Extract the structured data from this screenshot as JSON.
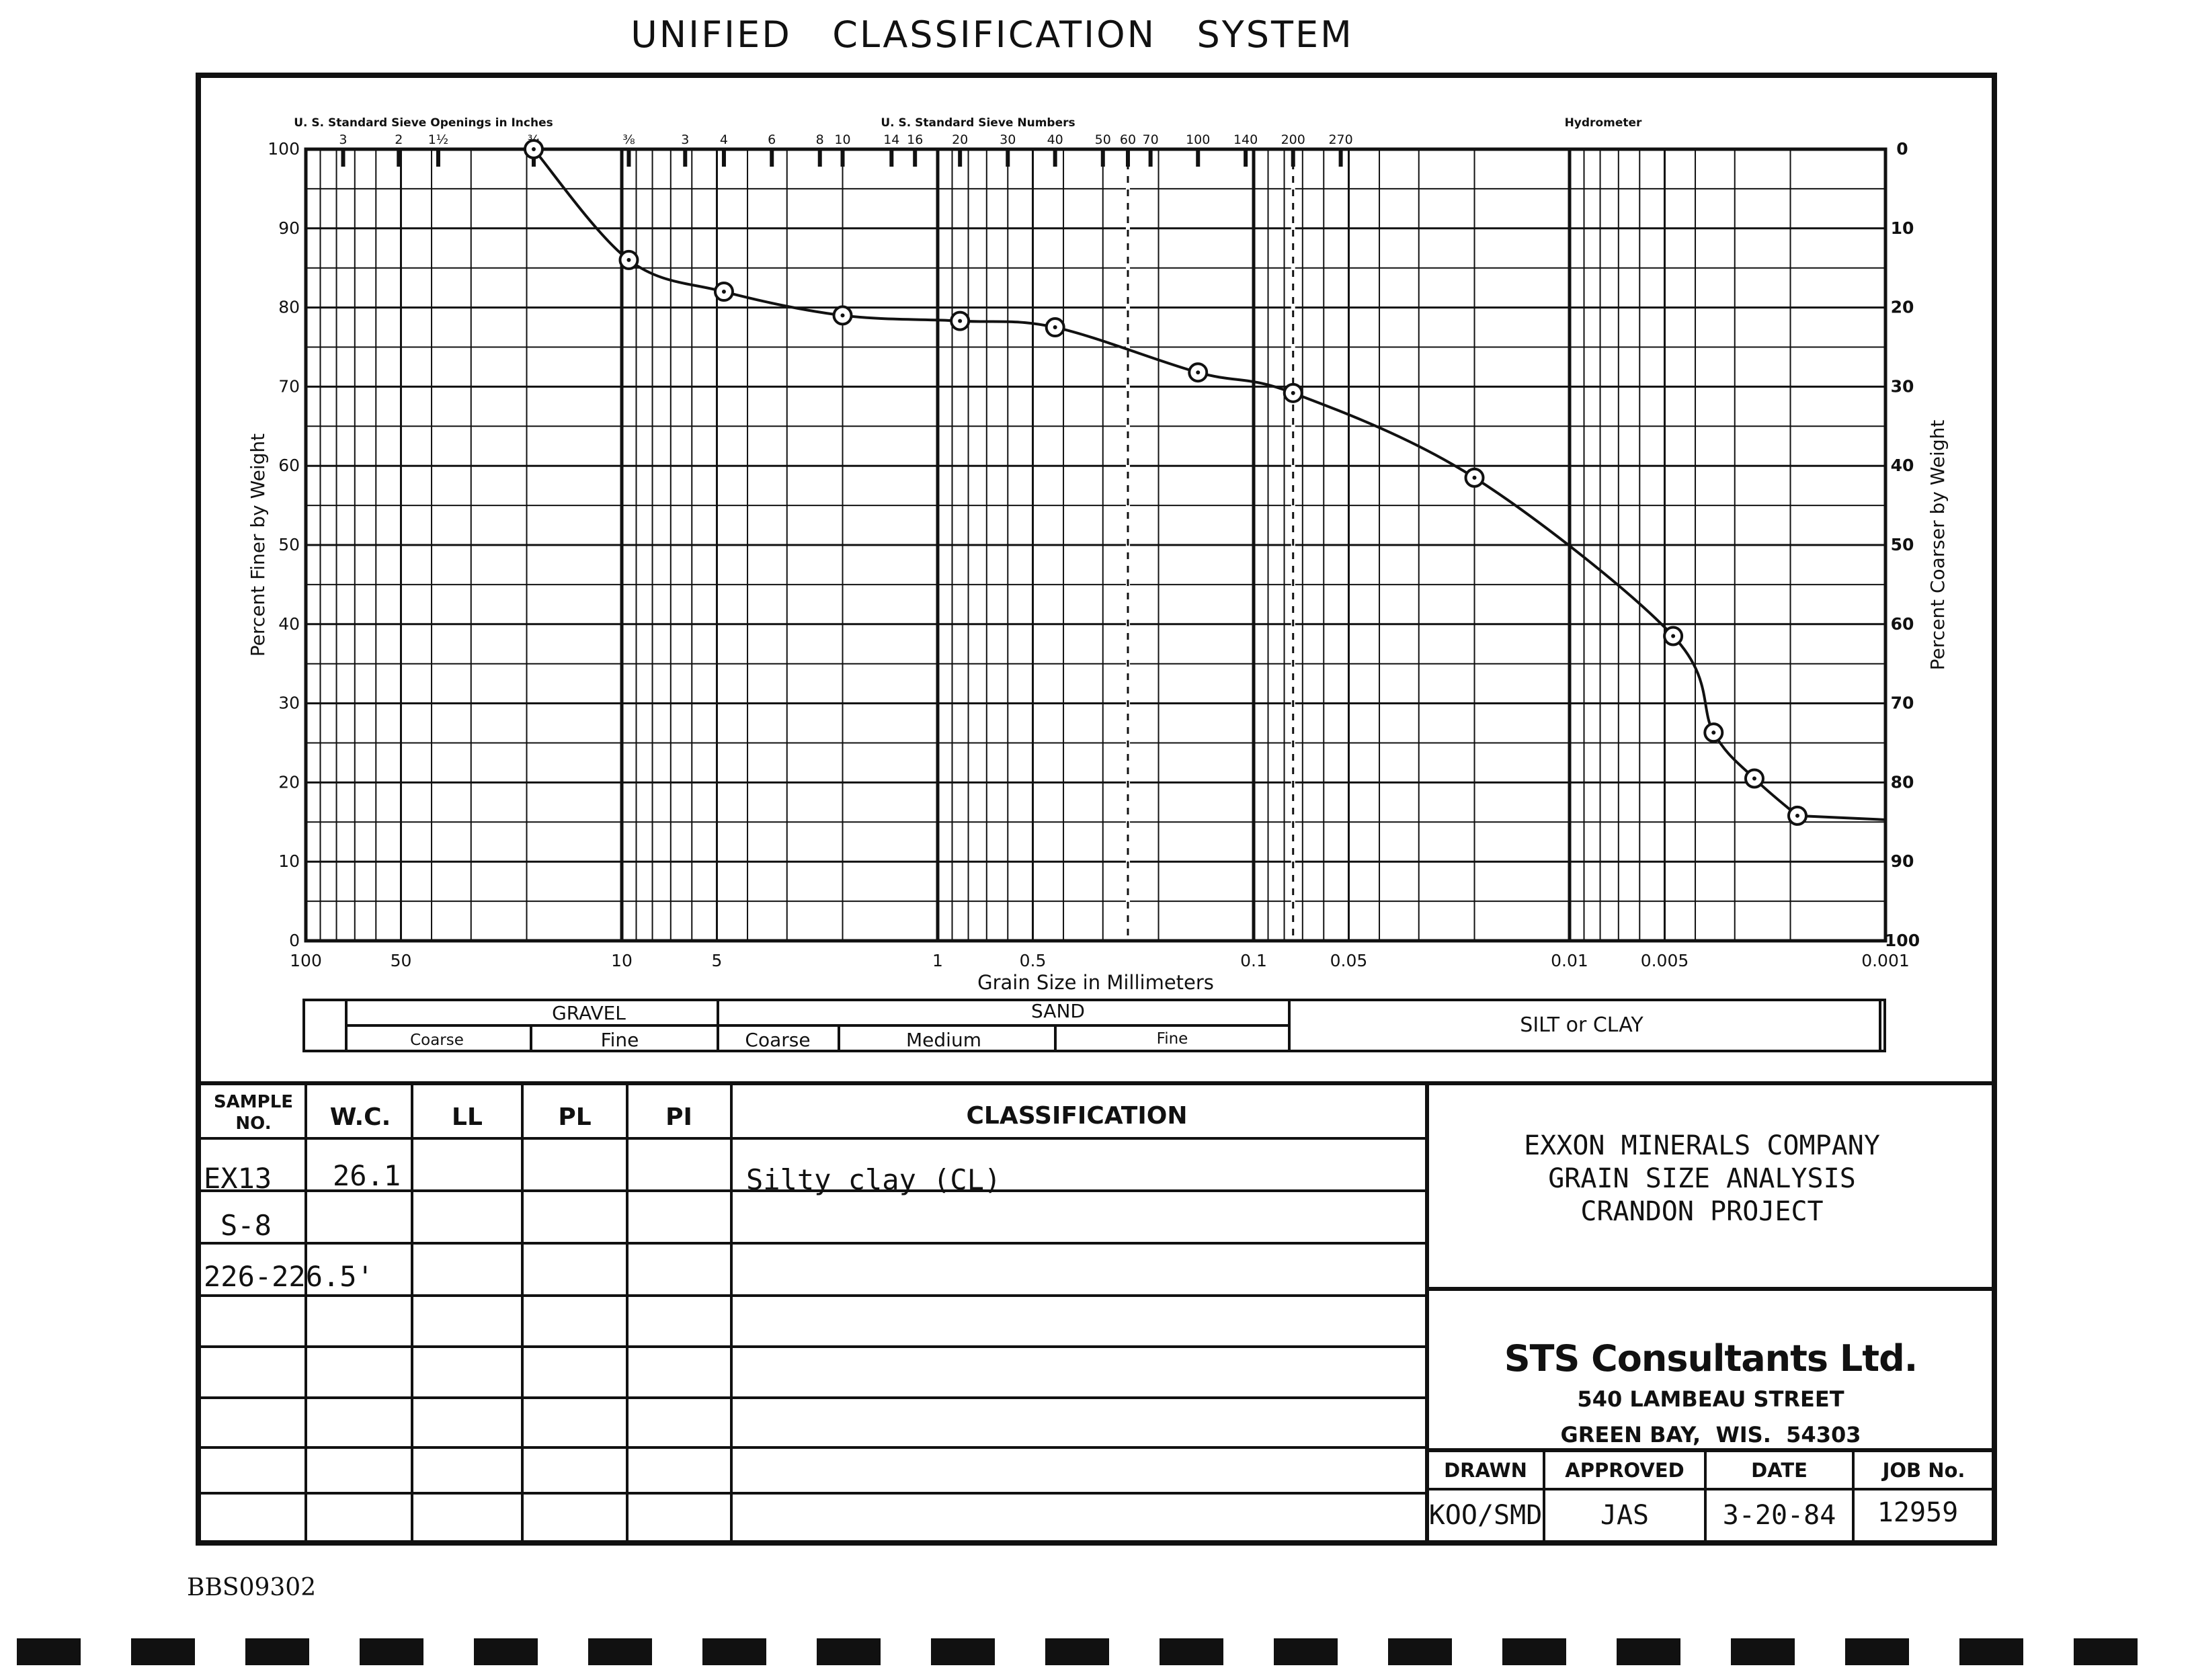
{
  "title": "UNIFIED   CLASSIFICATION   SYSTEM",
  "chart_data": {
    "type": "line",
    "x_scale": "log",
    "x_reversed": true,
    "xlabel": "Grain Size in Millimeters",
    "ylabel": "Percent Finer by Weight",
    "ylabel_right": "Percent Coarser by Weight",
    "xlim": [
      100,
      0.001
    ],
    "ylim": [
      0,
      100
    ],
    "grid": true,
    "x_ticks": [
      {
        "v": 100,
        "label": "100"
      },
      {
        "v": 50,
        "label": "50"
      },
      {
        "v": 10,
        "label": "10"
      },
      {
        "v": 5,
        "label": "5"
      },
      {
        "v": 1,
        "label": "1"
      },
      {
        "v": 0.5,
        "label": "0.5"
      },
      {
        "v": 0.1,
        "label": "0.1"
      },
      {
        "v": 0.05,
        "label": "0.05"
      },
      {
        "v": 0.01,
        "label": "0.01"
      },
      {
        "v": 0.005,
        "label": "0.005"
      },
      {
        "v": 0.001,
        "label": "0.001"
      }
    ],
    "y_ticks": [
      0,
      10,
      20,
      30,
      40,
      50,
      60,
      70,
      80,
      90,
      100
    ],
    "y_ticks_right": [
      100,
      90,
      80,
      70,
      60,
      50,
      40,
      30,
      20,
      10,
      0
    ],
    "sieve_inches_label": "U. S. Standard Sieve Openings in Inches",
    "sieve_inches": [
      {
        "label": "3",
        "mm": 76.2
      },
      {
        "label": "2",
        "mm": 50.8
      },
      {
        "label": "1½",
        "mm": 38.1
      },
      {
        "label": "¾",
        "mm": 19.0
      },
      {
        "label": "⅜",
        "mm": 9.5
      }
    ],
    "sieve_numbers_label": "U. S. Standard Sieve Numbers",
    "sieve_numbers": [
      {
        "label": "3",
        "mm": 6.3
      },
      {
        "label": "4",
        "mm": 4.75
      },
      {
        "label": "6",
        "mm": 3.35
      },
      {
        "label": "8",
        "mm": 2.36
      },
      {
        "label": "10",
        "mm": 2.0
      },
      {
        "label": "14",
        "mm": 1.4
      },
      {
        "label": "16",
        "mm": 1.18
      },
      {
        "label": "20",
        "mm": 0.85
      },
      {
        "label": "30",
        "mm": 0.6
      },
      {
        "label": "40",
        "mm": 0.425
      },
      {
        "label": "50",
        "mm": 0.3
      },
      {
        "label": "60",
        "mm": 0.25
      },
      {
        "label": "70",
        "mm": 0.212
      },
      {
        "label": "100",
        "mm": 0.15
      },
      {
        "label": "140",
        "mm": 0.106
      },
      {
        "label": "200",
        "mm": 0.075
      },
      {
        "label": "270",
        "mm": 0.053
      }
    ],
    "hydrometer_label": "Hydrometer",
    "series": [
      {
        "x": [
          19.0,
          9.5,
          4.75,
          2.0,
          0.85,
          0.425,
          0.15,
          0.075,
          0.02,
          0.0047,
          0.0035,
          0.0026,
          0.0019
        ],
        "y": [
          100,
          86,
          82,
          79,
          78.3,
          77.5,
          71.8,
          69.2,
          58.5,
          38.5,
          26.3,
          20.5,
          15.8
        ]
      }
    ]
  },
  "soil_classes": {
    "gravel": "GRAVEL",
    "sand": "SAND",
    "silt_clay": "SILT or CLAY",
    "gravel_coarse": "Coarse",
    "gravel_fine": "Fine",
    "sand_coarse": "Coarse",
    "sand_medium": "Medium",
    "sand_fine": "Fine"
  },
  "table": {
    "headers": {
      "sample": "SAMPLE",
      "sample2": "NO.",
      "wc": "W.C.",
      "ll": "LL",
      "pl": "PL",
      "pi": "PI",
      "classification": "CLASSIFICATION"
    },
    "sample_lines": [
      "EX13",
      "S-8",
      "226-226.5'"
    ],
    "wc": "26.1",
    "classification": "Silty clay (CL)"
  },
  "project": {
    "line1": "EXXON MINERALS COMPANY",
    "line2": "GRAIN SIZE ANALYSIS",
    "line3": "CRANDON PROJECT"
  },
  "firm": {
    "name": "STS Consultants Ltd.",
    "street": "540 LAMBEAU STREET",
    "city": "GREEN BAY,  WIS.  54303"
  },
  "signoff": {
    "drawn_label": "DRAWN",
    "approved_label": "APPROVED",
    "date_label": "DATE",
    "job_label": "JOB No.",
    "drawn": "KOO/SMD",
    "approved": "JAS",
    "date": "3-20-84",
    "job": "12959"
  },
  "footer_id": "BBS09302"
}
